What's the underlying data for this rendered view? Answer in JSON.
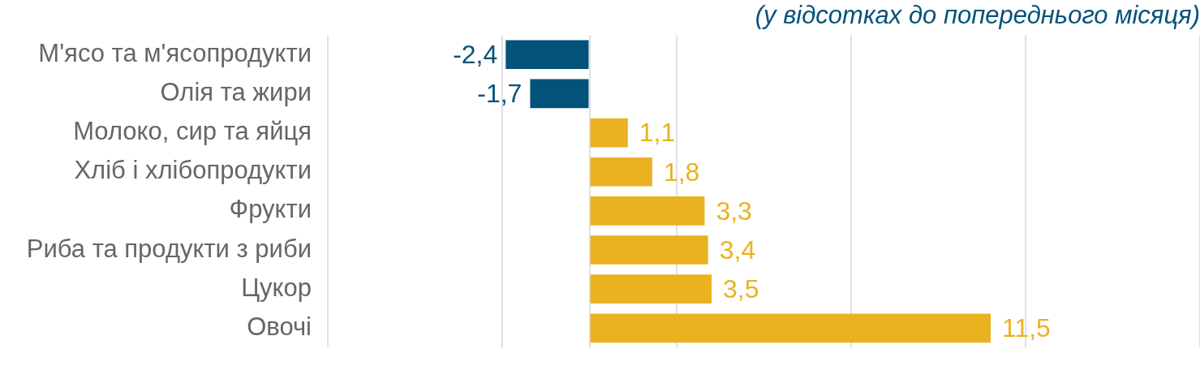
{
  "chart_data": {
    "type": "bar",
    "orientation": "horizontal",
    "subtitle": "(у відсотках до попереднього місяця)",
    "categories": [
      "М'ясо та м'ясопродукти",
      "Олія та жири",
      "Молоко, сир та яйця",
      "Хліб і хлібопродукти",
      "Фрукти",
      "Риба та продукти з риби",
      "Цукор",
      "Овочі"
    ],
    "values": [
      -2.4,
      -1.7,
      1.1,
      1.8,
      3.3,
      3.4,
      3.5,
      11.5
    ],
    "colors": [
      "#03527a",
      "#03527a",
      "#eab221",
      "#eab221",
      "#eab221",
      "#eab221",
      "#eab221",
      "#eab221"
    ],
    "value_labels": [
      "-2,4",
      "-1,7",
      "1,1",
      "1,8",
      "3,3",
      "3,4",
      "3,5",
      "11,5"
    ],
    "xlim": [
      -7.5,
      17.5
    ],
    "xticks": [
      {
        "value": -7.5,
        "label": null
      },
      {
        "value": -2.5,
        "label": null
      },
      {
        "value": 0,
        "label": null
      },
      {
        "value": 2.5,
        "label": null
      },
      {
        "value": 7.5,
        "label": null
      },
      {
        "value": 12.5,
        "label": null
      },
      {
        "value": 17.5,
        "label": null
      }
    ],
    "tick_labels": "y",
    "grid": "x",
    "legend": false
  }
}
